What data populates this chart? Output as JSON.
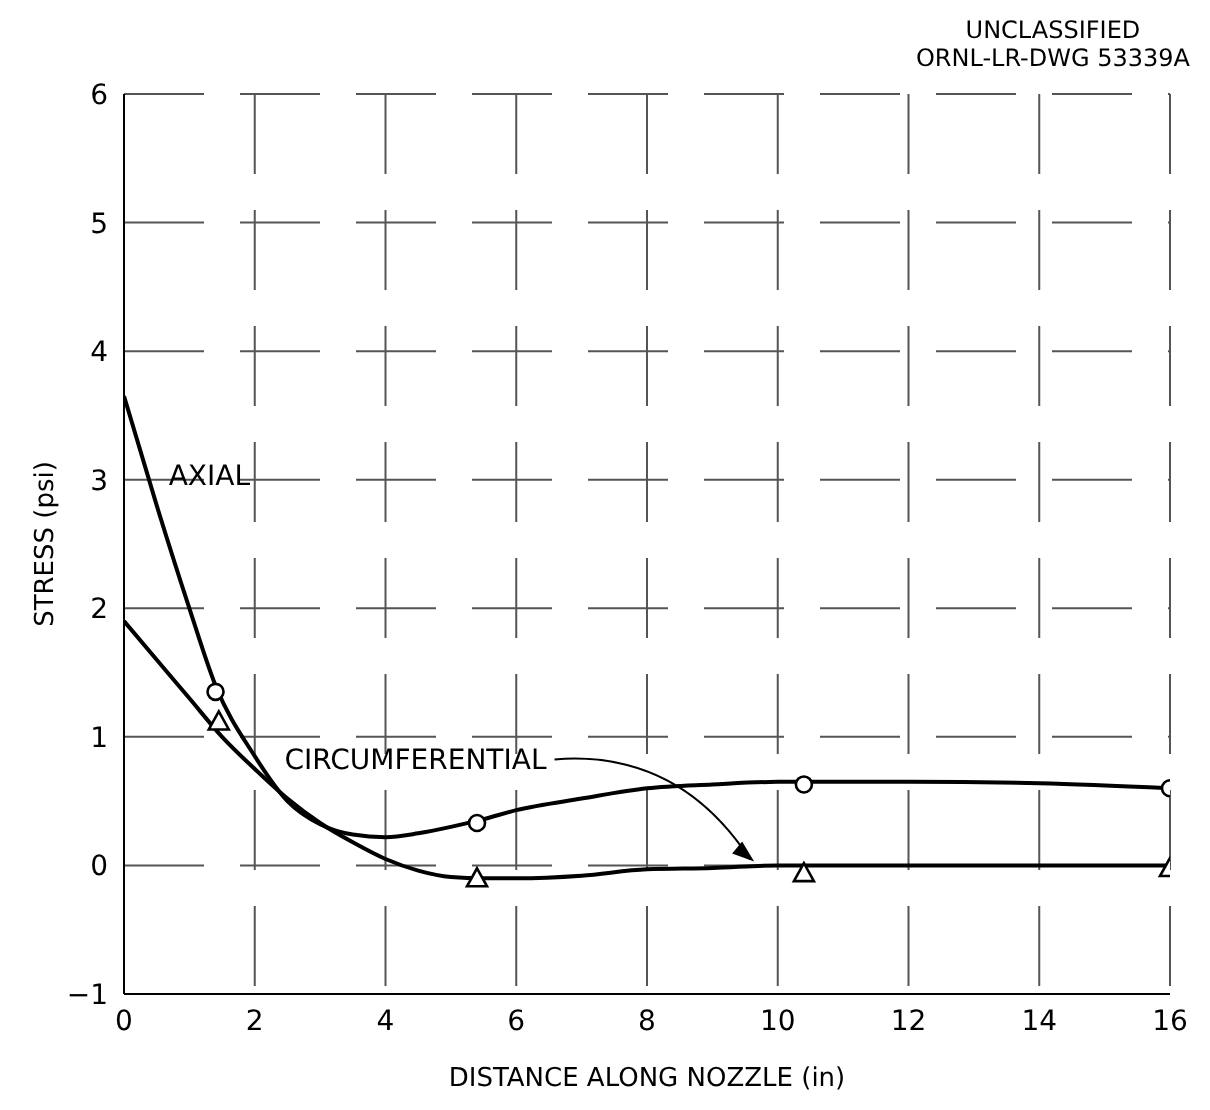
{
  "chart_data": {
    "type": "line",
    "xlabel": "DISTANCE ALONG NOZZLE (in)",
    "ylabel": "STRESS (psi)",
    "annotations": [
      "UNCLASSIFIED",
      "ORNL-LR-DWG 53339A",
      {
        "text": "CIRCUMFERENTIAL",
        "x": 9.7,
        "y": 0
      }
    ],
    "xlim": [
      0,
      16
    ],
    "xticks": [
      0,
      2,
      4,
      6,
      8,
      10,
      12,
      14,
      16
    ],
    "ylim": [
      -1,
      6
    ],
    "yticks": [
      -1,
      0,
      1,
      2,
      3,
      4,
      5,
      6
    ],
    "grid": true,
    "series": [
      {
        "name": "AXIAL",
        "color": "#000000",
        "marker": "none",
        "x": [
          0,
          0.5,
          1,
          1.4,
          2,
          2.5,
          3,
          3.5,
          4,
          4.5,
          5,
          5.5,
          6,
          7,
          8,
          9,
          10,
          12,
          14,
          16
        ],
        "values": [
          3.65,
          2.8,
          2.0,
          1.4,
          0.85,
          0.5,
          0.32,
          0.24,
          0.22,
          0.25,
          0.3,
          0.36,
          0.43,
          0.52,
          0.6,
          0.63,
          0.65,
          0.65,
          0.64,
          0.6
        ]
      },
      {
        "color": "#000000",
        "marker": "none",
        "x": [
          0,
          0.5,
          1,
          1.5,
          2,
          2.5,
          3,
          3.5,
          4,
          4.5,
          5,
          5.5,
          6,
          7,
          8,
          9,
          10,
          12,
          14,
          16
        ],
        "values": [
          1.9,
          1.6,
          1.3,
          1.0,
          0.75,
          0.52,
          0.33,
          0.18,
          0.05,
          -0.04,
          -0.09,
          -0.1,
          -0.1,
          -0.08,
          -0.03,
          -0.02,
          0,
          0,
          0,
          0
        ]
      },
      {
        "type": "scatter",
        "color": "#000000",
        "marker": "circle",
        "x": [
          1.4,
          5.4,
          10.4,
          16
        ],
        "values": [
          1.35,
          0.33,
          0.63,
          0.6
        ]
      },
      {
        "type": "scatter",
        "color": "#000000",
        "marker": "triangle",
        "x": [
          1.45,
          5.4,
          10.4,
          16
        ],
        "values": [
          1.12,
          -0.1,
          -0.06,
          -0.02
        ]
      }
    ]
  }
}
